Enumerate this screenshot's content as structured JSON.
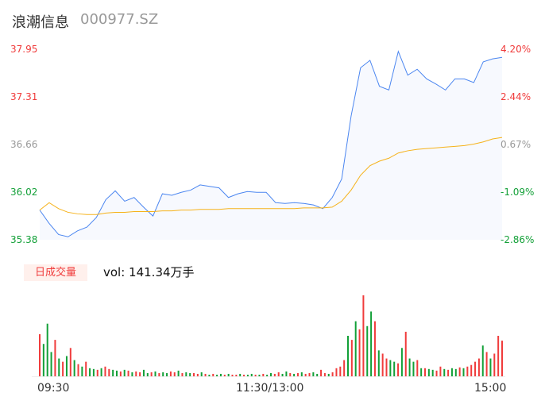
{
  "header": {
    "name": "浪潮信息",
    "code": "000977.SZ"
  },
  "volume_badge": "日成交量",
  "volume_text": "vol: 141.34万手",
  "colors": {
    "price_line": "#4b86f0",
    "avg_line": "#f6b21a",
    "up": "#f03c3c",
    "down": "#13a038",
    "neutral": "#999999"
  },
  "chart_data": {
    "type": "line",
    "price_axis_labels": [
      {
        "text": "37.95",
        "color": "up"
      },
      {
        "text": "37.31",
        "color": "up"
      },
      {
        "text": "36.66",
        "color": "neutral"
      },
      {
        "text": "36.02",
        "color": "down"
      },
      {
        "text": "35.38",
        "color": "down"
      }
    ],
    "pct_axis_labels": [
      {
        "text": "4.20%",
        "color": "up"
      },
      {
        "text": "2.44%",
        "color": "up"
      },
      {
        "text": "0.67%",
        "color": "neutral"
      },
      {
        "text": "-1.09%",
        "color": "down"
      },
      {
        "text": "-2.86%",
        "color": "down"
      }
    ],
    "ylim": [
      35.38,
      37.95
    ],
    "x_tick_labels": [
      "09:30",
      "11:30/13:00",
      "15:00"
    ],
    "price": [
      35.78,
      35.6,
      35.45,
      35.42,
      35.5,
      35.55,
      35.68,
      35.92,
      36.04,
      35.9,
      35.95,
      35.82,
      35.7,
      36.0,
      35.98,
      36.02,
      36.05,
      36.12,
      36.1,
      36.08,
      35.95,
      36.0,
      36.03,
      36.02,
      36.02,
      35.88,
      35.87,
      35.88,
      35.87,
      35.85,
      35.8,
      35.95,
      36.2,
      37.05,
      37.7,
      37.8,
      37.45,
      37.4,
      37.92,
      37.6,
      37.68,
      37.55,
      37.48,
      37.4,
      37.55,
      37.55,
      37.5,
      37.78,
      37.82,
      37.84
    ],
    "avg_price": [
      35.78,
      35.88,
      35.8,
      35.75,
      35.73,
      35.72,
      35.72,
      35.74,
      35.75,
      35.75,
      35.76,
      35.76,
      35.76,
      35.77,
      35.77,
      35.78,
      35.78,
      35.79,
      35.79,
      35.79,
      35.8,
      35.8,
      35.8,
      35.8,
      35.8,
      35.8,
      35.8,
      35.8,
      35.81,
      35.81,
      35.81,
      35.82,
      35.9,
      36.05,
      36.25,
      36.38,
      36.44,
      36.48,
      36.55,
      36.58,
      36.6,
      36.61,
      36.62,
      36.63,
      36.64,
      36.65,
      36.67,
      36.7,
      36.74,
      36.76
    ],
    "volume_relative": [
      52,
      40,
      65,
      30,
      45,
      22,
      18,
      25,
      35,
      20,
      15,
      12,
      18,
      10,
      9,
      8,
      10,
      12,
      9,
      8,
      7,
      6,
      8,
      7,
      5,
      6,
      5,
      8,
      4,
      5,
      6,
      4,
      5,
      4,
      6,
      5,
      7,
      4,
      5,
      4,
      4,
      3,
      5,
      3,
      2,
      3,
      2,
      3,
      2,
      3,
      2,
      2,
      3,
      2,
      2,
      3,
      2,
      2,
      3,
      2,
      4,
      3,
      5,
      3,
      6,
      4,
      3,
      4,
      5,
      3,
      4,
      5,
      3,
      8,
      4,
      3,
      5,
      10,
      12,
      20,
      50,
      45,
      68,
      58,
      100,
      62,
      80,
      68,
      32,
      28,
      22,
      20,
      18,
      16,
      35,
      55,
      22,
      18,
      20,
      10,
      10,
      9,
      8,
      7,
      12,
      9,
      8,
      10,
      9,
      11,
      10,
      12,
      14,
      18,
      22,
      38,
      30,
      22,
      28,
      50,
      44
    ],
    "volume_direction": "RGGGRGRGRGRGRGGRGRRGGRGRGRRGGRGRGGRRGRGGRRGRGRGGRGRRGRGGRGRGGRRGGRGRGRRGGRRGRRRRGRGRRGGRGRRGGRGRGGRGRGGRRGRGGRGRRRRGRGRRR"
  }
}
